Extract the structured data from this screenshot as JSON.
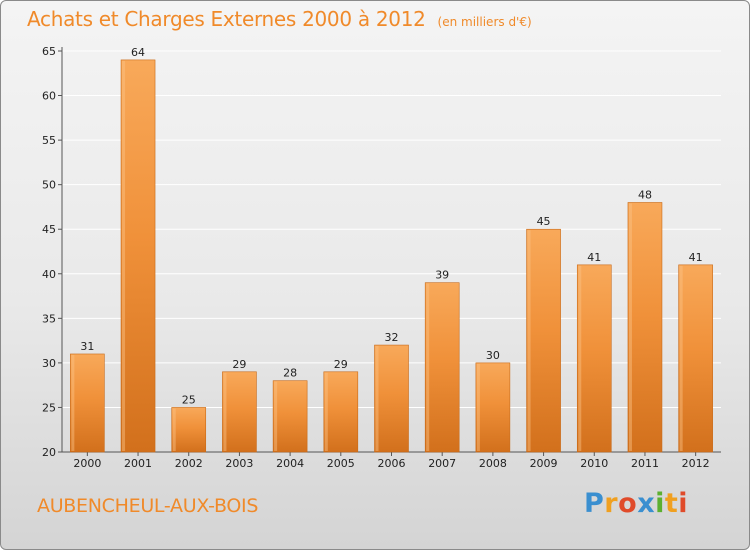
{
  "chart_data": {
    "type": "bar",
    "title": "Achats et Charges Externes 2000 à 2012",
    "subtitle": "(en milliers d'€)",
    "categories": [
      "2000",
      "2001",
      "2002",
      "2003",
      "2004",
      "2005",
      "2006",
      "2007",
      "2008",
      "2009",
      "2010",
      "2011",
      "2012"
    ],
    "values": [
      31,
      64,
      25,
      29,
      28,
      29,
      32,
      39,
      30,
      45,
      41,
      48,
      41
    ],
    "xlabel": "",
    "ylabel": "",
    "ylim": [
      20,
      65
    ],
    "yticks": [
      20,
      25,
      30,
      35,
      40,
      45,
      50,
      55,
      60,
      65
    ],
    "grid": true,
    "bar_color": "#f0913a",
    "bar_color_light": "#f8a95a",
    "bar_color_dark": "#d2701c"
  },
  "footer": {
    "place": "AUBENCHEUL-AUX-BOIS"
  },
  "logo": {
    "text": "Proxiti",
    "letters": [
      "P",
      "r",
      "o",
      "x",
      "i",
      "t",
      "i"
    ],
    "colors": [
      "#3a8fd0",
      "#f0a020",
      "#e04b2a",
      "#3a8fd0",
      "#5cb030",
      "#f0a020",
      "#e04b2a"
    ]
  },
  "colors": {
    "accent": "#f08a2a",
    "grid": "#ffffff",
    "axis": "#555555"
  }
}
